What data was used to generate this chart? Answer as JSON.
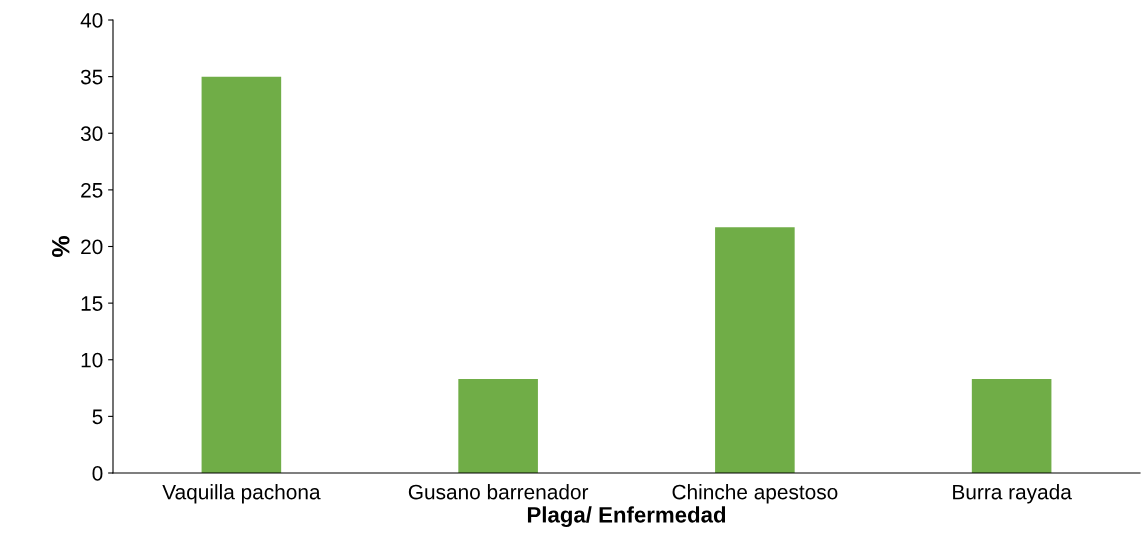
{
  "chart_data": {
    "type": "bar",
    "xlabel": "Plaga/ Enfermedad",
    "ylabel": "%",
    "categories": [
      "Vaquilla pachona",
      "Gusano barrenador",
      "Chinche apestoso",
      "Burra rayada"
    ],
    "values": [
      35,
      8.3,
      21.7,
      8.3
    ],
    "color": "#70ad47",
    "ylim": [
      0,
      40
    ],
    "yticks": [
      0,
      5,
      10,
      15,
      20,
      25,
      30,
      35,
      40
    ],
    "grid": false,
    "legend": false
  }
}
